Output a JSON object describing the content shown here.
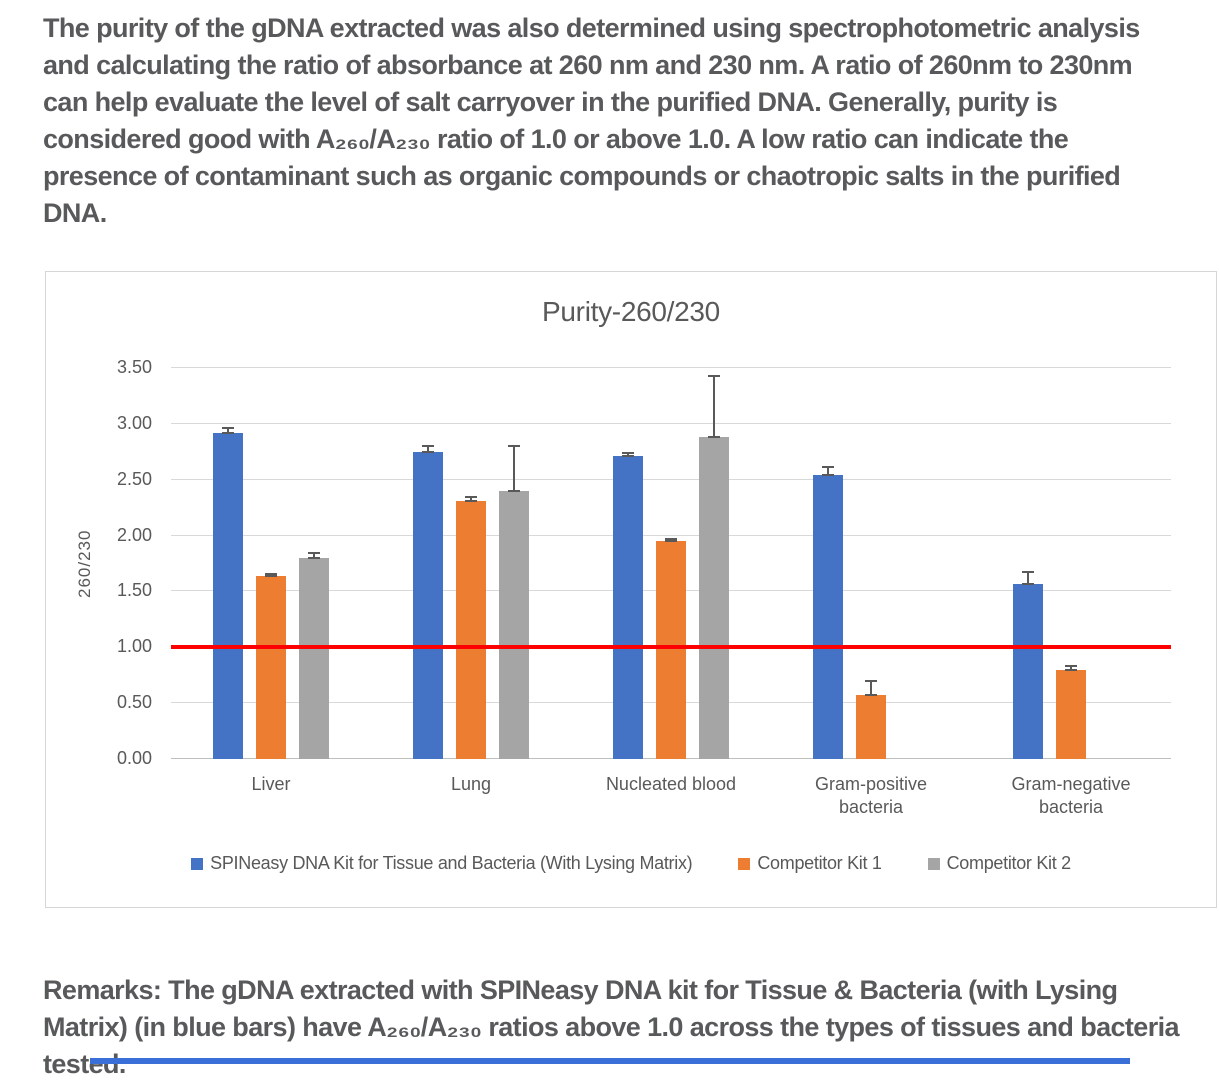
{
  "intro": {
    "text": "The purity of the gDNA extracted was also determined using spectrophotometric analysis and calculating the ratio of absorbance at 260 nm and 230 nm. A ratio of 260nm to 230nm can help evaluate the level of salt carryover in the purified DNA. Generally, purity is considered good with A₂₆₀/A₂₃₀ ratio of 1.0 or above 1.0. A low ratio can indicate the presence of contaminant such as organic compounds or chaotropic salts in the purified DNA."
  },
  "remarks": {
    "text": "Remarks: The gDNA extracted with SPINeasy DNA kit for Tissue & Bacteria (with Lysing Matrix) (in blue bars) have A₂₆₀/A₂₃₀ ratios above 1.0 across the types of tissues and bacteria tested."
  },
  "chart_data": {
    "type": "bar",
    "title": "Purity-260/230",
    "xlabel": "",
    "ylabel": "260/230",
    "ylim": [
      0,
      3.5
    ],
    "yticks": [
      0,
      0.5,
      1.0,
      1.5,
      2.0,
      2.5,
      3.0,
      3.5
    ],
    "grid": true,
    "legend_position": "bottom",
    "categories": [
      "Liver",
      "Lung",
      "Nucleated blood",
      "Gram-positive bacteria",
      "Gram-negative bacteria"
    ],
    "series": [
      {
        "name": "SPINeasy DNA Kit for Tissue and Bacteria (With Lysing Matrix)",
        "color": "#4472C4",
        "values": [
          2.92,
          2.75,
          2.71,
          2.54,
          1.57
        ],
        "errors": [
          0.04,
          0.05,
          0.03,
          0.07,
          0.1
        ]
      },
      {
        "name": "Competitor Kit 1",
        "color": "#ED7D31",
        "values": [
          1.64,
          2.31,
          1.95,
          0.57,
          0.8
        ],
        "errors": [
          0.02,
          0.04,
          0.02,
          0.13,
          0.03
        ]
      },
      {
        "name": "Competitor Kit 2",
        "color": "#A5A5A5",
        "values": [
          1.8,
          2.4,
          2.88,
          null,
          null
        ],
        "errors": [
          0.04,
          0.4,
          0.55,
          null,
          null
        ]
      }
    ],
    "reference_line": {
      "value": 1.0,
      "color": "#FF0000"
    }
  },
  "colors": {
    "paragraph_text": "#58595B",
    "chart_text": "#595959",
    "gridline": "#D9D9D9",
    "chart_border": "#D6D6D6",
    "error_bar": "#595959",
    "bottom_strip": "#3A6FD8"
  }
}
